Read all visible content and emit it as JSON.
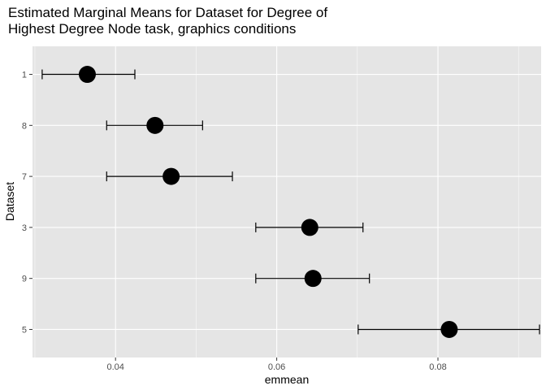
{
  "chart_data": {
    "type": "scatter",
    "title_lines": [
      "Estimated Marginal Means for Dataset for Degree of",
      "Highest Degree Node task, graphics conditions"
    ],
    "xlabel": "emmean",
    "ylabel": "Dataset",
    "xlim": [
      0.0297,
      0.0928
    ],
    "x_ticks": [
      0.04,
      0.06,
      0.08
    ],
    "x_tick_labels": [
      "0.04",
      "0.06",
      "0.08"
    ],
    "grid": true,
    "categories": [
      "1",
      "8",
      "7",
      "3",
      "9",
      "5"
    ],
    "points": [
      {
        "dataset": "1",
        "emmean": 0.0365,
        "lower": 0.0309,
        "upper": 0.0424
      },
      {
        "dataset": "8",
        "emmean": 0.0449,
        "lower": 0.0389,
        "upper": 0.0508
      },
      {
        "dataset": "7",
        "emmean": 0.0469,
        "lower": 0.0389,
        "upper": 0.0545
      },
      {
        "dataset": "3",
        "emmean": 0.0641,
        "lower": 0.0574,
        "upper": 0.0707
      },
      {
        "dataset": "9",
        "emmean": 0.0645,
        "lower": 0.0574,
        "upper": 0.0715
      },
      {
        "dataset": "5",
        "emmean": 0.0814,
        "lower": 0.0701,
        "upper": 0.0926
      }
    ],
    "colors": {
      "panel_background": "#e5e5e5",
      "grid_major": "#ffffff",
      "point": "#000000",
      "errorbar": "#000000",
      "tick_label": "#4d4d4d"
    }
  }
}
